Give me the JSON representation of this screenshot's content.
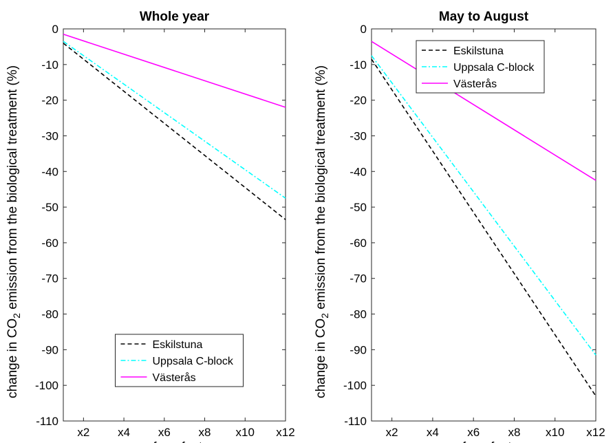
{
  "chart_data": [
    {
      "type": "line",
      "title": "Whole year",
      "xlabel": "surface factor",
      "ylabel_prefix": "change in CO",
      "ylabel_sub": "2",
      "ylabel_suffix": " emission from the biological treatment (%)",
      "x_tick_values": [
        2,
        4,
        6,
        8,
        10,
        12
      ],
      "x_tick_labels": [
        "x2",
        "x4",
        "x6",
        "x8",
        "x10",
        "x12"
      ],
      "xlim": [
        1,
        12
      ],
      "ylim": [
        -110,
        0
      ],
      "y_ticks": [
        0,
        -10,
        -20,
        -30,
        -40,
        -50,
        -60,
        -70,
        -80,
        -90,
        -100,
        -110
      ],
      "y_tick_labels": [
        "0",
        "-10",
        "-20",
        "-30",
        "-40",
        "-50",
        "-60",
        "-70",
        "-80",
        "-90",
        "-100",
        "-110"
      ],
      "legend_position": "bottom-center",
      "series": [
        {
          "name": "Eskilstuna",
          "color": "#000000",
          "dash": "dashed",
          "x": [
            1,
            12
          ],
          "y": [
            -4,
            -53.5
          ]
        },
        {
          "name": "Uppsala C-block",
          "color": "#00ffff",
          "dash": "dashdot",
          "x": [
            1,
            12
          ],
          "y": [
            -3.5,
            -47.5
          ]
        },
        {
          "name": "Västerås",
          "color": "#ff00ff",
          "dash": "solid",
          "x": [
            1,
            12
          ],
          "y": [
            -1.5,
            -22
          ]
        }
      ]
    },
    {
      "type": "line",
      "title": "May to August",
      "xlabel": "surface factor",
      "ylabel_prefix": "change in CO",
      "ylabel_sub": "2",
      "ylabel_suffix": " emission from the biological treatment (%)",
      "x_tick_values": [
        2,
        4,
        6,
        8,
        10,
        12
      ],
      "x_tick_labels": [
        "x2",
        "x4",
        "x6",
        "x8",
        "x10",
        "x12"
      ],
      "xlim": [
        1,
        12
      ],
      "ylim": [
        -110,
        0
      ],
      "y_ticks": [
        0,
        -10,
        -20,
        -30,
        -40,
        -50,
        -60,
        -70,
        -80,
        -90,
        -100,
        -110
      ],
      "y_tick_labels": [
        "0",
        "-10",
        "-20",
        "-30",
        "-40",
        "-50",
        "-60",
        "-70",
        "-80",
        "-90",
        "-100",
        "-110"
      ],
      "legend_position": "top-center",
      "series": [
        {
          "name": "Eskilstuna",
          "color": "#000000",
          "dash": "dashed",
          "x": [
            1,
            12
          ],
          "y": [
            -8.5,
            -103
          ]
        },
        {
          "name": "Uppsala C-block",
          "color": "#00ffff",
          "dash": "dashdot",
          "x": [
            1,
            12
          ],
          "y": [
            -7.5,
            -91.5
          ]
        },
        {
          "name": "Västerås",
          "color": "#ff00ff",
          "dash": "solid",
          "x": [
            1,
            12
          ],
          "y": [
            -3.5,
            -42.5
          ]
        }
      ]
    }
  ]
}
